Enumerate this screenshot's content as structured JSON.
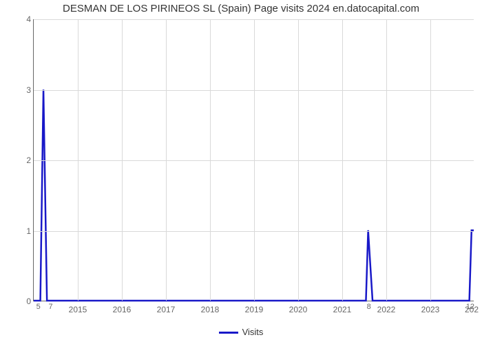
{
  "chart": {
    "type": "line",
    "title": "DESMAN DE LOS PIRINEOS SL (Spain) Page visits 2024 en.datocapital.com",
    "background_color": "#ffffff",
    "grid_color": "#d9d9d9",
    "axis_color": "#666666",
    "line_color": "#1818c8",
    "line_width": 2.5,
    "title_fontsize": 15,
    "tick_fontsize": 12,
    "ylim": [
      0,
      4
    ],
    "yticks": [
      0,
      1,
      2,
      3,
      4
    ],
    "x_range": [
      2014.0,
      2024.0
    ],
    "xtick_years": [
      2015,
      2016,
      2017,
      2018,
      2019,
      2020,
      2021,
      2022,
      2023
    ],
    "partial_xtick_right_label": "202",
    "small_left_a": "5",
    "small_left_b": "7",
    "small_right_a": "8",
    "small_right_b": "12",
    "legend_label": "Visits",
    "series": {
      "x": [
        2014.0,
        2014.15,
        2014.22,
        2014.3,
        2014.4,
        2021.45,
        2021.55,
        2021.6,
        2021.7,
        2023.8,
        2023.9,
        2023.95,
        2024.0
      ],
      "y": [
        0,
        0,
        3,
        0,
        0,
        0,
        0,
        1,
        0,
        0,
        0,
        1,
        1
      ]
    }
  }
}
